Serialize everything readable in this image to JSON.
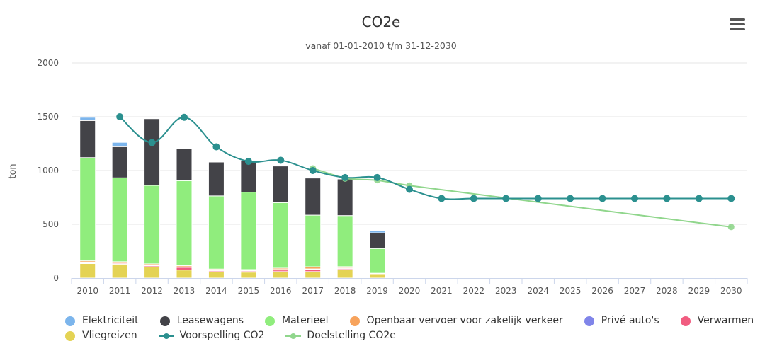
{
  "chart_data": {
    "type": "bar",
    "title": "CO2e",
    "subtitle": "vanaf 01-01-2010 t/m 31-12-2030",
    "ylabel": "ton",
    "xlabel": "",
    "ylim": [
      0,
      2000
    ],
    "yticks": [
      "0",
      "500",
      "1000",
      "1500",
      "2000"
    ],
    "grid": true,
    "legend_position": "bottom",
    "categories": [
      "2010",
      "2011",
      "2012",
      "2013",
      "2014",
      "2015",
      "2016",
      "2017",
      "2018",
      "2019",
      "2020",
      "2021",
      "2022",
      "2023",
      "2024",
      "2025",
      "2026",
      "2027",
      "2028",
      "2029",
      "2030"
    ],
    "stack_series": [
      {
        "name": "Vliegreizen",
        "color": "#e4d354",
        "values": [
          135,
          130,
          105,
          75,
          60,
          55,
          60,
          60,
          80,
          40,
          0,
          0,
          0,
          0,
          0,
          0,
          0,
          0,
          0,
          0,
          0
        ]
      },
      {
        "name": "Verwarmen",
        "color": "#f15c80",
        "values": [
          8,
          8,
          10,
          25,
          10,
          10,
          15,
          20,
          10,
          0,
          0,
          0,
          0,
          0,
          0,
          0,
          0,
          0,
          0,
          0,
          0
        ]
      },
      {
        "name": "Privé auto's",
        "color": "#8085e9",
        "values": [
          5,
          4,
          5,
          4,
          4,
          4,
          5,
          5,
          4,
          0,
          0,
          0,
          0,
          0,
          0,
          0,
          0,
          0,
          0,
          0,
          0
        ]
      },
      {
        "name": "Openbaar vervoer voor zakelijk verkeer",
        "color": "#f7a35c",
        "values": [
          12,
          10,
          12,
          12,
          10,
          10,
          12,
          20,
          12,
          5,
          0,
          0,
          0,
          0,
          0,
          0,
          0,
          0,
          0,
          0,
          0
        ]
      },
      {
        "name": "Materieel",
        "color": "#90ed7d",
        "values": [
          960,
          780,
          730,
          790,
          680,
          720,
          610,
          480,
          475,
          230,
          0,
          0,
          0,
          0,
          0,
          0,
          0,
          0,
          0,
          0,
          0
        ]
      },
      {
        "name": "Leasewagens",
        "color": "#434348",
        "values": [
          345,
          290,
          620,
          300,
          315,
          295,
          340,
          345,
          340,
          145,
          0,
          0,
          0,
          0,
          0,
          0,
          0,
          0,
          0,
          0,
          0
        ]
      },
      {
        "name": "Elektriciteit",
        "color": "#7cb5ec",
        "values": [
          30,
          40,
          0,
          0,
          0,
          0,
          0,
          0,
          0,
          20,
          0,
          0,
          0,
          0,
          0,
          0,
          0,
          0,
          0,
          0,
          0
        ]
      }
    ],
    "line_series": [
      {
        "name": "Voorspelling CO2",
        "color": "#2b908f",
        "values": [
          null,
          1500,
          1260,
          1495,
          1220,
          1085,
          1095,
          1000,
          935,
          935,
          825,
          740,
          740,
          740,
          740,
          740,
          740,
          740,
          740,
          740,
          740
        ]
      },
      {
        "name": "Doelstelling CO2e",
        "color": "#90d68c",
        "values": [
          null,
          null,
          null,
          null,
          null,
          null,
          null,
          1020,
          925,
          910,
          860,
          null,
          null,
          null,
          null,
          null,
          null,
          null,
          null,
          null,
          475
        ]
      }
    ]
  },
  "legend": {
    "row1": [
      {
        "name": "Elektriciteit",
        "color": "#7cb5ec",
        "kind": "dot"
      },
      {
        "name": "Leasewagens",
        "color": "#434348",
        "kind": "dot"
      },
      {
        "name": "Materieel",
        "color": "#90ed7d",
        "kind": "dot"
      },
      {
        "name": "Openbaar vervoer voor zakelijk verkeer",
        "color": "#f7a35c",
        "kind": "dot"
      },
      {
        "name": "Privé auto's",
        "color": "#8085e9",
        "kind": "dot"
      },
      {
        "name": "Verwarmen",
        "color": "#f15c80",
        "kind": "dot"
      }
    ],
    "row2": [
      {
        "name": "Vliegreizen",
        "color": "#e4d354",
        "kind": "dot"
      },
      {
        "name": "Voorspelling CO2",
        "color": "#2b908f",
        "kind": "line"
      },
      {
        "name": "Doelstelling CO2e",
        "color": "#90d68c",
        "kind": "line"
      }
    ]
  },
  "menu_icon": "hamburger-menu-icon"
}
